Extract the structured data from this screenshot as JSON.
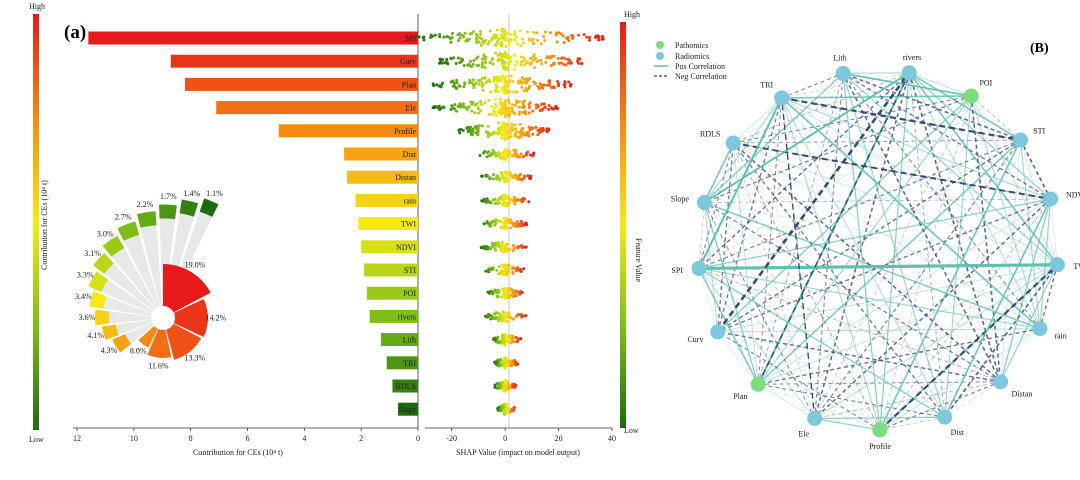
{
  "panel_a": {
    "label": "(a)",
    "scale_high": "High",
    "scale_low": "Low",
    "left_axis_label": "Contribution for CEs (10⁴ t)",
    "right_axis_label": "Feature Value",
    "colors": {
      "high": "#e8191b",
      "mid": "#f5ea14",
      "low": "#1d6b0e"
    }
  },
  "panel_b": {
    "label": "(B)",
    "legend": {
      "pathomics": "Pathomics",
      "radiomics": "Radiomics",
      "pos": "Pos Correlation",
      "neg": "Neg Correlation"
    },
    "colors": {
      "pathomics": "#7ddc7d",
      "radiomics": "#7dc8dc",
      "pos": "#5fbfb0",
      "neg": "#3b4a73"
    },
    "nodes": [
      {
        "name": "rivers",
        "type": "radiomics"
      },
      {
        "name": "POI",
        "type": "pathomics"
      },
      {
        "name": "STI",
        "type": "radiomics"
      },
      {
        "name": "NDVI",
        "type": "radiomics"
      },
      {
        "name": "TWI",
        "type": "radiomics"
      },
      {
        "name": "rain",
        "type": "radiomics"
      },
      {
        "name": "Distan",
        "type": "radiomics"
      },
      {
        "name": "Dist",
        "type": "radiomics"
      },
      {
        "name": "Profile",
        "type": "pathomics"
      },
      {
        "name": "Ele",
        "type": "radiomics"
      },
      {
        "name": "Plan",
        "type": "pathomics"
      },
      {
        "name": "Curv",
        "type": "radiomics"
      },
      {
        "name": "SPI",
        "type": "radiomics"
      },
      {
        "name": "Slope",
        "type": "radiomics"
      },
      {
        "name": "RDLS",
        "type": "radiomics"
      },
      {
        "name": "TRI",
        "type": "radiomics"
      },
      {
        "name": "Lith",
        "type": "radiomics"
      }
    ]
  },
  "chart_data": [
    {
      "type": "bar",
      "orientation": "horizontal",
      "title": "",
      "xlabel": "Contribution for CEs (10⁴ t)",
      "xlim": [
        12,
        0
      ],
      "xticks": [
        "12",
        "10",
        "8",
        "6",
        "4",
        "2",
        "0"
      ],
      "categories": [
        "SPI",
        "Curv",
        "Plan",
        "Ele",
        "Profile",
        "Dist",
        "Distan",
        "rain",
        "TWI",
        "NDVI",
        "STI",
        "POI",
        "rivers",
        "Lith",
        "TRI",
        "RDLS",
        "Slope"
      ],
      "values": [
        11.6,
        8.7,
        8.2,
        7.1,
        4.9,
        2.6,
        2.5,
        2.2,
        2.1,
        2.0,
        1.9,
        1.8,
        1.7,
        1.3,
        1.1,
        0.9,
        0.7
      ]
    },
    {
      "type": "pie",
      "title": "",
      "labels": [
        "SPI",
        "Curv",
        "Plan",
        "Ele",
        "Profile",
        "Dist",
        "Distan",
        "rain",
        "TWI",
        "NDVI",
        "STI",
        "POI",
        "rivers",
        "Lith",
        "TRI",
        "RDLS",
        "Slope"
      ],
      "values": [
        19.0,
        14.2,
        13.3,
        11.6,
        8.0,
        4.3,
        4.1,
        3.6,
        3.4,
        3.3,
        3.1,
        3.0,
        2.7,
        2.2,
        1.7,
        1.4,
        1.1
      ],
      "value_labels": [
        "19.0%",
        "14.2%",
        "13.3%",
        "11.6%",
        "8.0%",
        "4.3%",
        "4.1%",
        "3.6%",
        "3.4%",
        "3.3%",
        "3.1%",
        "3.0%",
        "2.7%",
        "2.2%",
        "1.7%",
        "1.4%",
        "1.1%"
      ]
    },
    {
      "type": "scatter",
      "title": "",
      "xlabel": "SHAP Value (impact on model output)",
      "xlim": [
        -30,
        40
      ],
      "xticks": [
        "-20",
        "0",
        "20",
        "40"
      ],
      "features": [
        "SPI",
        "Curv",
        "Plan",
        "Ele",
        "Profile",
        "Dist",
        "Distan",
        "rain",
        "TWI",
        "NDVI",
        "STI",
        "POI",
        "rivers",
        "Lith",
        "TRI",
        "RDLS",
        "Slope"
      ],
      "shap_range": [
        [
          -33,
          37
        ],
        [
          -25,
          32
        ],
        [
          -27,
          25
        ],
        [
          -27,
          20
        ],
        [
          -18,
          17
        ],
        [
          -11,
          11
        ],
        [
          -9,
          10
        ],
        [
          -9,
          9
        ],
        [
          -9,
          8
        ],
        [
          -9,
          8
        ],
        [
          -8,
          7
        ],
        [
          -7,
          7
        ],
        [
          -8,
          8
        ],
        [
          -5,
          6
        ],
        [
          -4,
          5
        ],
        [
          -4,
          4
        ],
        [
          -3,
          4
        ]
      ]
    }
  ]
}
